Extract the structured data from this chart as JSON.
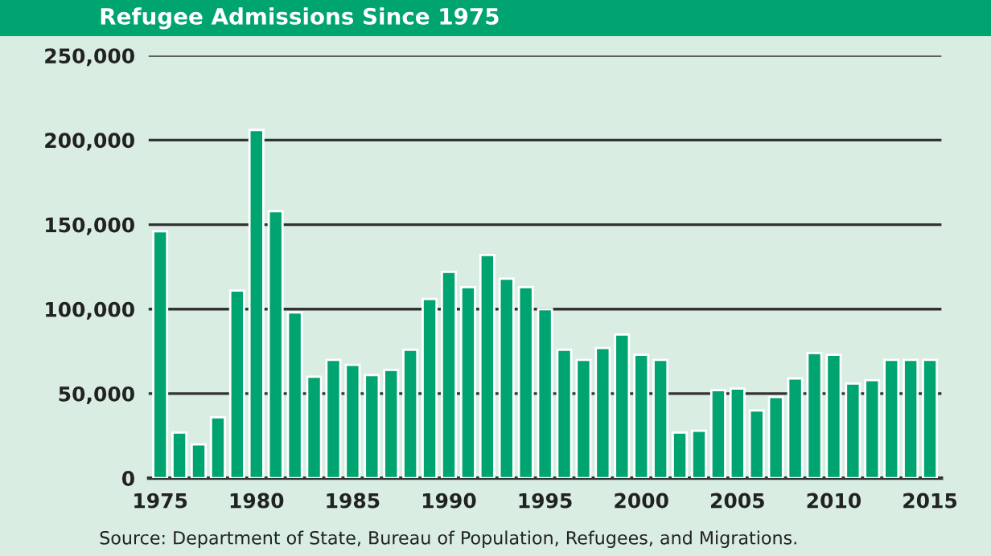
{
  "chart_data": {
    "type": "bar",
    "title": "Refugee Admissions Since 1975",
    "x": [
      1975,
      1976,
      1977,
      1978,
      1979,
      1980,
      1981,
      1982,
      1983,
      1984,
      1985,
      1986,
      1987,
      1988,
      1989,
      1990,
      1991,
      1992,
      1993,
      1994,
      1995,
      1996,
      1997,
      1998,
      1999,
      2000,
      2001,
      2002,
      2003,
      2004,
      2005,
      2006,
      2007,
      2008,
      2009,
      2010,
      2011,
      2012,
      2013,
      2014,
      2015
    ],
    "values": [
      146000,
      27000,
      20000,
      36000,
      111000,
      206000,
      158000,
      98000,
      60000,
      70000,
      67000,
      61000,
      64000,
      76000,
      106000,
      122000,
      113000,
      132000,
      118000,
      113000,
      100000,
      76000,
      70000,
      77000,
      85000,
      73000,
      70000,
      27000,
      28000,
      52000,
      53000,
      40000,
      48000,
      59000,
      74000,
      73000,
      56000,
      58000,
      70000,
      70000,
      70000
    ],
    "color": "#00a470",
    "xlim": [
      1974.4,
      2015.6
    ],
    "xticks": [
      1975,
      1980,
      1985,
      1990,
      1995,
      2000,
      2005,
      2010,
      2015
    ],
    "ylim": [
      0,
      250000
    ],
    "yticks": [
      {
        "value": 0,
        "label": "0"
      },
      {
        "value": 50000,
        "label": "50,000"
      },
      {
        "value": 100000,
        "label": "100,000"
      },
      {
        "value": 150000,
        "label": "150,000"
      },
      {
        "value": 200000,
        "label": "200,000"
      },
      {
        "value": 250000,
        "label": "250,000"
      }
    ],
    "grid": "y",
    "annotations": [
      "Source: Department of State, Bureau of Population, Refugees, and Migrations."
    ]
  }
}
